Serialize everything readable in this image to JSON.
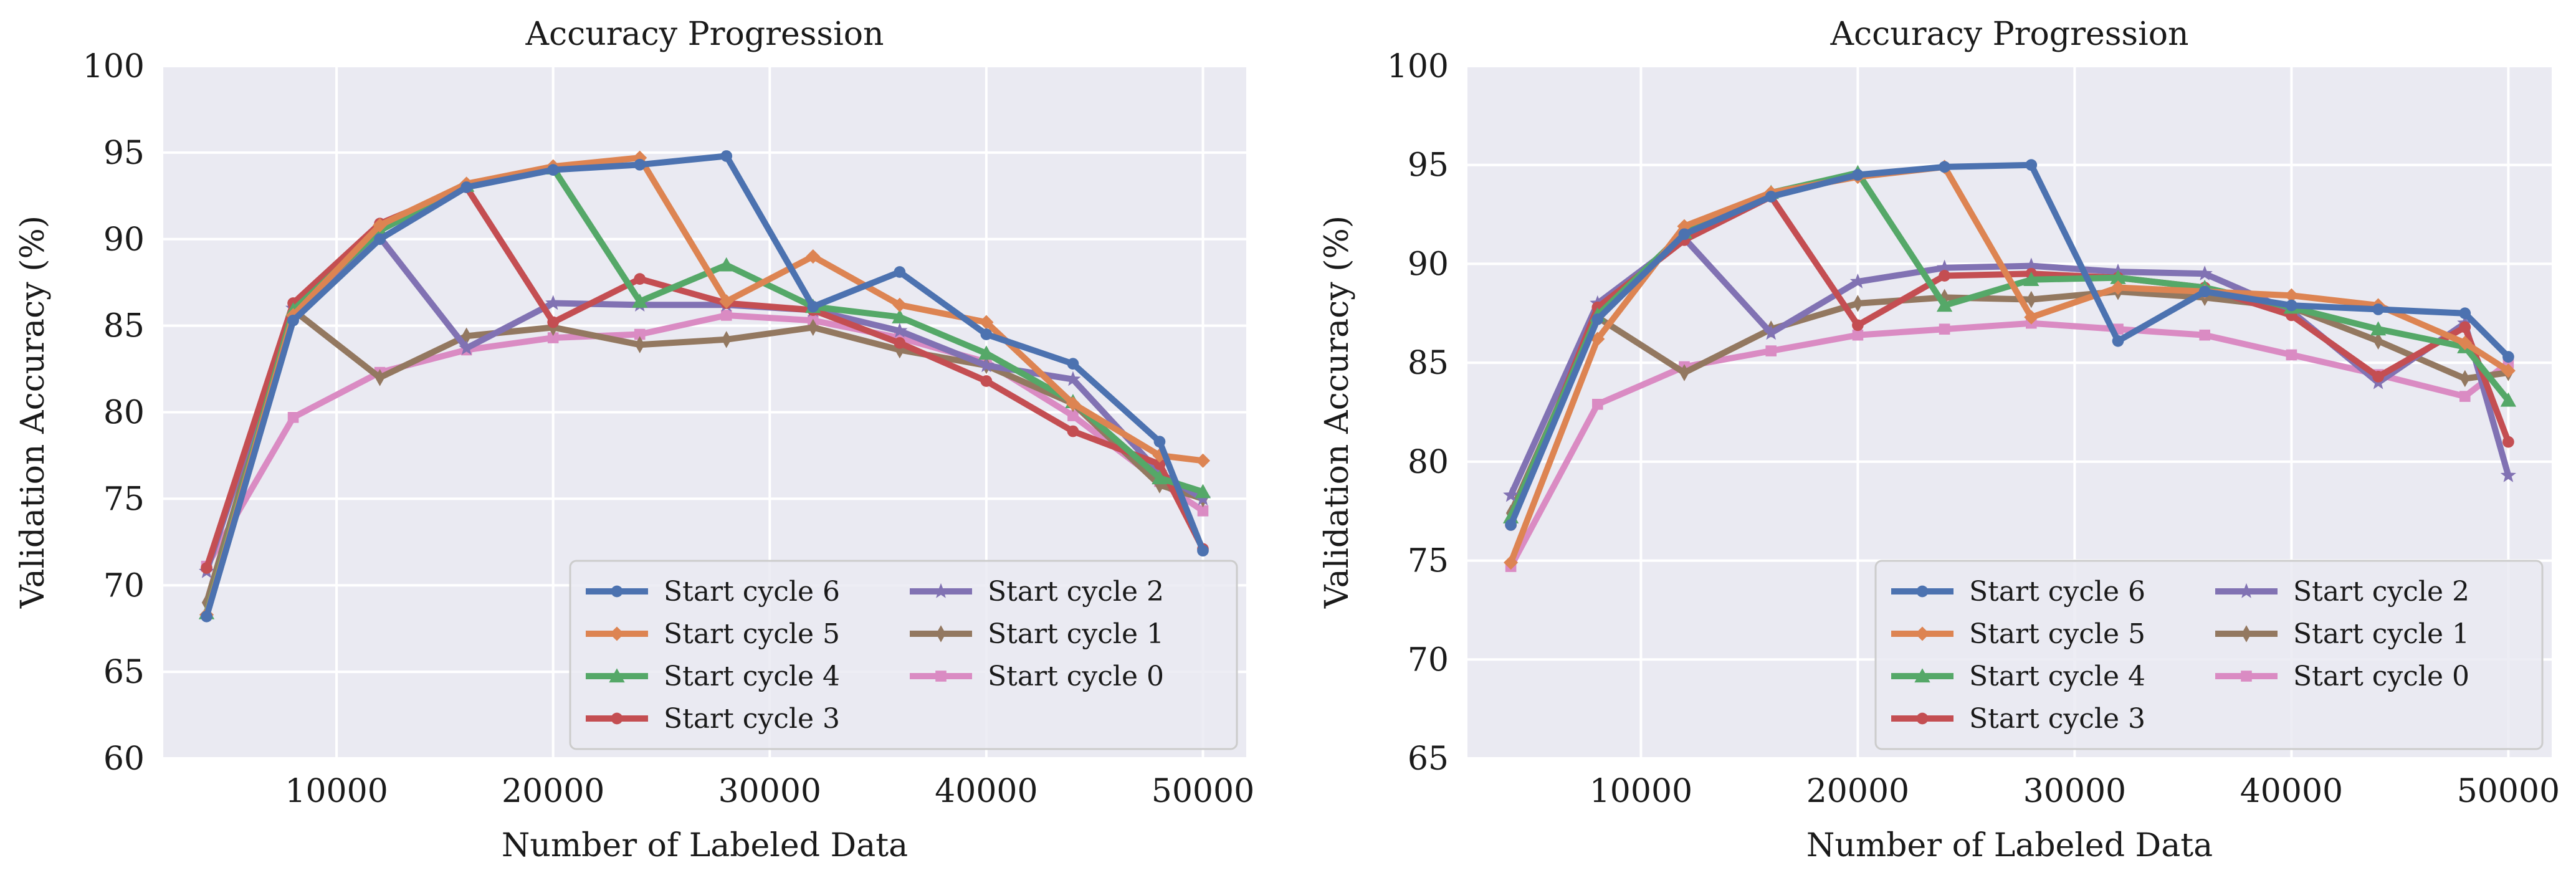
{
  "colors": {
    "background": "#eaeaf2",
    "grid": "#ffffff",
    "series": [
      "#4c72b0",
      "#dd8452",
      "#55a868",
      "#c44e52",
      "#8172b3",
      "#937860",
      "#da8bc3"
    ]
  },
  "chart_data": [
    {
      "type": "line",
      "title": "Accuracy Progression",
      "xlabel": "Number of Labeled Data",
      "ylabel": "Validation Accuracy (%)",
      "xlim": [
        2000,
        52000
      ],
      "ylim": [
        60,
        100
      ],
      "xticks": [
        10000,
        20000,
        30000,
        40000,
        50000
      ],
      "yticks": [
        60,
        65,
        70,
        75,
        80,
        85,
        90,
        95,
        100
      ],
      "grid": true,
      "legend": {
        "position": "lower-right",
        "columns": 2
      },
      "series": [
        {
          "name": "Start cycle 6",
          "marker": "circle",
          "color": "#4c72b0",
          "x": [
            4000,
            8000,
            12000,
            16000,
            20000,
            24000,
            28000,
            32000,
            36000,
            40000,
            44000,
            48000,
            50000
          ],
          "y": [
            68.2,
            85.3,
            90.0,
            93.0,
            94.0,
            94.3,
            94.8,
            86.1,
            88.1,
            84.5,
            82.8,
            78.3,
            72.0
          ]
        },
        {
          "name": "Start cycle 5",
          "marker": "diamond",
          "color": "#dd8452",
          "x": [
            4000,
            8000,
            12000,
            16000,
            20000,
            24000,
            28000,
            32000,
            36000,
            40000,
            44000,
            48000,
            50000
          ],
          "y": [
            68.3,
            85.6,
            90.8,
            93.2,
            94.2,
            94.7,
            86.4,
            89.0,
            86.2,
            85.2,
            80.5,
            77.5,
            77.2
          ]
        },
        {
          "name": "Start cycle 4",
          "marker": "triangle",
          "color": "#55a868",
          "x": [
            4000,
            8000,
            12000,
            16000,
            20000,
            24000,
            28000,
            32000,
            36000,
            40000,
            44000,
            48000,
            50000
          ],
          "y": [
            68.4,
            85.9,
            90.5,
            93.1,
            94.1,
            86.4,
            88.5,
            86.1,
            85.5,
            83.4,
            80.6,
            76.2,
            75.4
          ]
        },
        {
          "name": "Start cycle 3",
          "marker": "circle",
          "color": "#c44e52",
          "x": [
            4000,
            8000,
            12000,
            16000,
            20000,
            24000,
            28000,
            32000,
            36000,
            40000,
            44000,
            48000,
            50000
          ],
          "y": [
            71.0,
            86.3,
            90.9,
            93.0,
            85.2,
            87.7,
            86.3,
            85.9,
            84.0,
            81.8,
            78.9,
            77.0,
            72.1
          ]
        },
        {
          "name": "Start cycle 2",
          "marker": "star",
          "color": "#8172b3",
          "x": [
            4000,
            8000,
            12000,
            16000,
            20000,
            24000,
            28000,
            32000,
            36000,
            40000,
            44000,
            48000,
            50000
          ],
          "y": [
            70.8,
            86.0,
            90.1,
            83.7,
            86.3,
            86.2,
            86.2,
            85.9,
            84.7,
            82.7,
            81.9,
            76.5,
            75.0
          ]
        },
        {
          "name": "Start cycle 1",
          "marker": "thin-diamond",
          "color": "#937860",
          "x": [
            4000,
            8000,
            12000,
            16000,
            20000,
            24000,
            28000,
            32000,
            36000,
            40000,
            44000,
            48000,
            50000
          ],
          "y": [
            69.0,
            85.9,
            82.0,
            84.4,
            84.9,
            83.9,
            84.2,
            84.9,
            83.6,
            82.7,
            80.5,
            75.8,
            75.0
          ]
        },
        {
          "name": "Start cycle 0",
          "marker": "square",
          "color": "#da8bc3",
          "x": [
            4000,
            8000,
            12000,
            16000,
            20000,
            24000,
            28000,
            32000,
            36000,
            40000,
            44000,
            48000,
            50000
          ],
          "y": [
            71.1,
            79.7,
            82.3,
            83.6,
            84.3,
            84.5,
            85.6,
            85.3,
            84.3,
            82.9,
            79.8,
            76.0,
            74.3
          ]
        }
      ]
    },
    {
      "type": "line",
      "title": "Accuracy Progression",
      "xlabel": "Number of Labeled Data",
      "ylabel": "Validation Accuracy (%)",
      "xlim": [
        2000,
        52000
      ],
      "ylim": [
        65,
        100
      ],
      "xticks": [
        10000,
        20000,
        30000,
        40000,
        50000
      ],
      "yticks": [
        65,
        70,
        75,
        80,
        85,
        90,
        95,
        100
      ],
      "grid": true,
      "legend": {
        "position": "lower-right",
        "columns": 2
      },
      "series": [
        {
          "name": "Start cycle 6",
          "marker": "circle",
          "color": "#4c72b0",
          "x": [
            4000,
            8000,
            12000,
            16000,
            20000,
            24000,
            28000,
            32000,
            36000,
            40000,
            44000,
            48000,
            50000
          ],
          "y": [
            76.8,
            87.2,
            91.5,
            93.4,
            94.5,
            94.9,
            95.0,
            86.1,
            88.6,
            87.9,
            87.7,
            87.5,
            85.3
          ]
        },
        {
          "name": "Start cycle 5",
          "marker": "diamond",
          "color": "#dd8452",
          "x": [
            4000,
            8000,
            12000,
            16000,
            20000,
            24000,
            28000,
            32000,
            36000,
            40000,
            44000,
            48000,
            50000
          ],
          "y": [
            74.9,
            86.2,
            91.9,
            93.6,
            94.4,
            94.9,
            87.3,
            88.8,
            88.6,
            88.4,
            87.9,
            86.0,
            84.6
          ]
        },
        {
          "name": "Start cycle 4",
          "marker": "triangle",
          "color": "#55a868",
          "x": [
            4000,
            8000,
            12000,
            16000,
            20000,
            24000,
            28000,
            32000,
            36000,
            40000,
            44000,
            48000,
            50000
          ],
          "y": [
            77.2,
            87.4,
            91.6,
            93.6,
            94.6,
            87.9,
            89.2,
            89.3,
            88.8,
            87.8,
            86.7,
            85.8,
            83.1
          ]
        },
        {
          "name": "Start cycle 3",
          "marker": "circle",
          "color": "#c44e52",
          "x": [
            4000,
            8000,
            12000,
            16000,
            20000,
            24000,
            28000,
            32000,
            36000,
            40000,
            44000,
            48000,
            50000
          ],
          "y": [
            76.8,
            87.8,
            91.2,
            93.4,
            86.9,
            89.4,
            89.5,
            89.3,
            88.8,
            87.4,
            84.3,
            86.8,
            81.0
          ]
        },
        {
          "name": "Start cycle 2",
          "marker": "star",
          "color": "#8172b3",
          "x": [
            4000,
            8000,
            12000,
            16000,
            20000,
            24000,
            28000,
            32000,
            36000,
            40000,
            44000,
            48000,
            50000
          ],
          "y": [
            78.3,
            88.0,
            91.3,
            86.5,
            89.1,
            89.8,
            89.9,
            89.6,
            89.5,
            87.6,
            84.0,
            87.0,
            79.3
          ]
        },
        {
          "name": "Start cycle 1",
          "marker": "thin-diamond",
          "color": "#937860",
          "x": [
            4000,
            8000,
            12000,
            16000,
            20000,
            24000,
            28000,
            32000,
            36000,
            40000,
            44000,
            48000,
            50000
          ],
          "y": [
            77.4,
            87.3,
            84.5,
            86.7,
            88.0,
            88.3,
            88.2,
            88.6,
            88.3,
            87.8,
            86.1,
            84.2,
            84.5
          ]
        },
        {
          "name": "Start cycle 0",
          "marker": "square",
          "color": "#da8bc3",
          "x": [
            4000,
            8000,
            12000,
            16000,
            20000,
            24000,
            28000,
            32000,
            36000,
            40000,
            44000,
            48000,
            50000
          ],
          "y": [
            74.7,
            82.9,
            84.8,
            85.6,
            86.4,
            86.7,
            87.0,
            86.7,
            86.4,
            85.4,
            84.4,
            83.3,
            85.0
          ]
        }
      ]
    }
  ]
}
